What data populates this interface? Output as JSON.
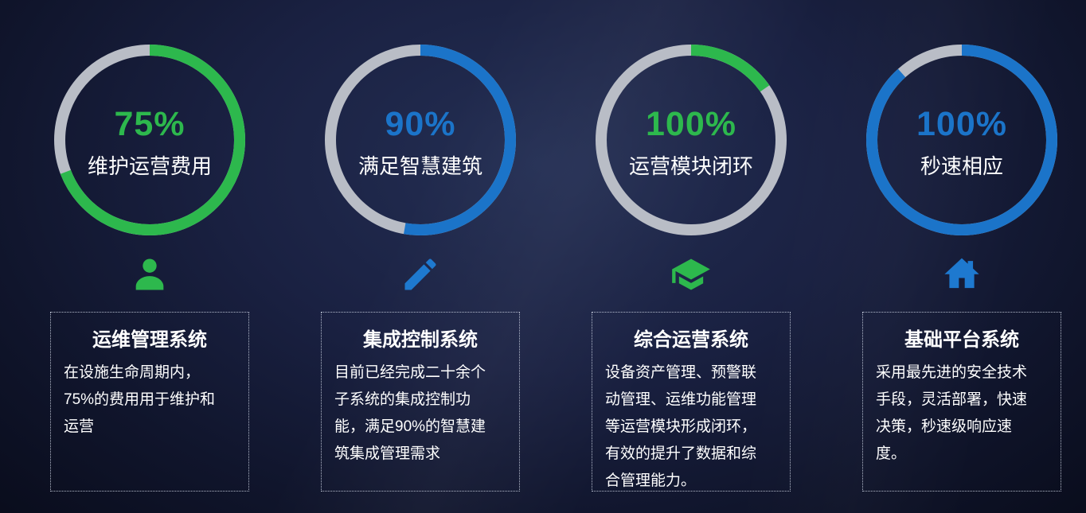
{
  "theme": {
    "background_center": "#242f54",
    "background_edge": "#090c1b",
    "ring_track_gray": "#b9bdc6",
    "green": "#2db84d",
    "blue": "#1b74c9",
    "text_white": "#ffffff"
  },
  "columns": [
    {
      "percent": "75%",
      "ring_label": "维护运营费用",
      "ring_hex": "#2db84d",
      "ring_sweep_deg": 249,
      "icon": "user-icon",
      "box": {
        "title": "运维管理系统",
        "body": "在设施生命周期内，\n75%的费用用于维护和\n运营"
      }
    },
    {
      "percent": "90%",
      "ring_label": "满足智慧建筑",
      "ring_hex": "#1b74c9",
      "ring_sweep_deg": 190,
      "icon": "pencil-icon",
      "box": {
        "title": "集成控制系统",
        "body": "目前已经完成二十余个\n子系统的集成控制功\n能，满足90%的智慧建\n筑集成管理需求"
      }
    },
    {
      "percent": "100%",
      "ring_label": "运营模块闭环",
      "ring_hex": "#2db84d",
      "ring_sweep_deg": 55,
      "icon": "graduation-cap-icon",
      "box": {
        "title": "综合运营系统",
        "body": "设备资产管理、预警联\n动管理、运维功能管理\n等运营模块形成闭环，\n有效的提升了数据和综\n合管理能力。"
      }
    },
    {
      "percent": "100%",
      "ring_label": "秒速相应",
      "ring_hex": "#1b74c9",
      "ring_sweep_deg": 318,
      "icon": "home-icon",
      "box": {
        "title": "基础平台系统",
        "body": "采用最先进的安全技术\n手段，灵活部署，快速\n决策，秒速级响应速\n度。"
      }
    }
  ]
}
